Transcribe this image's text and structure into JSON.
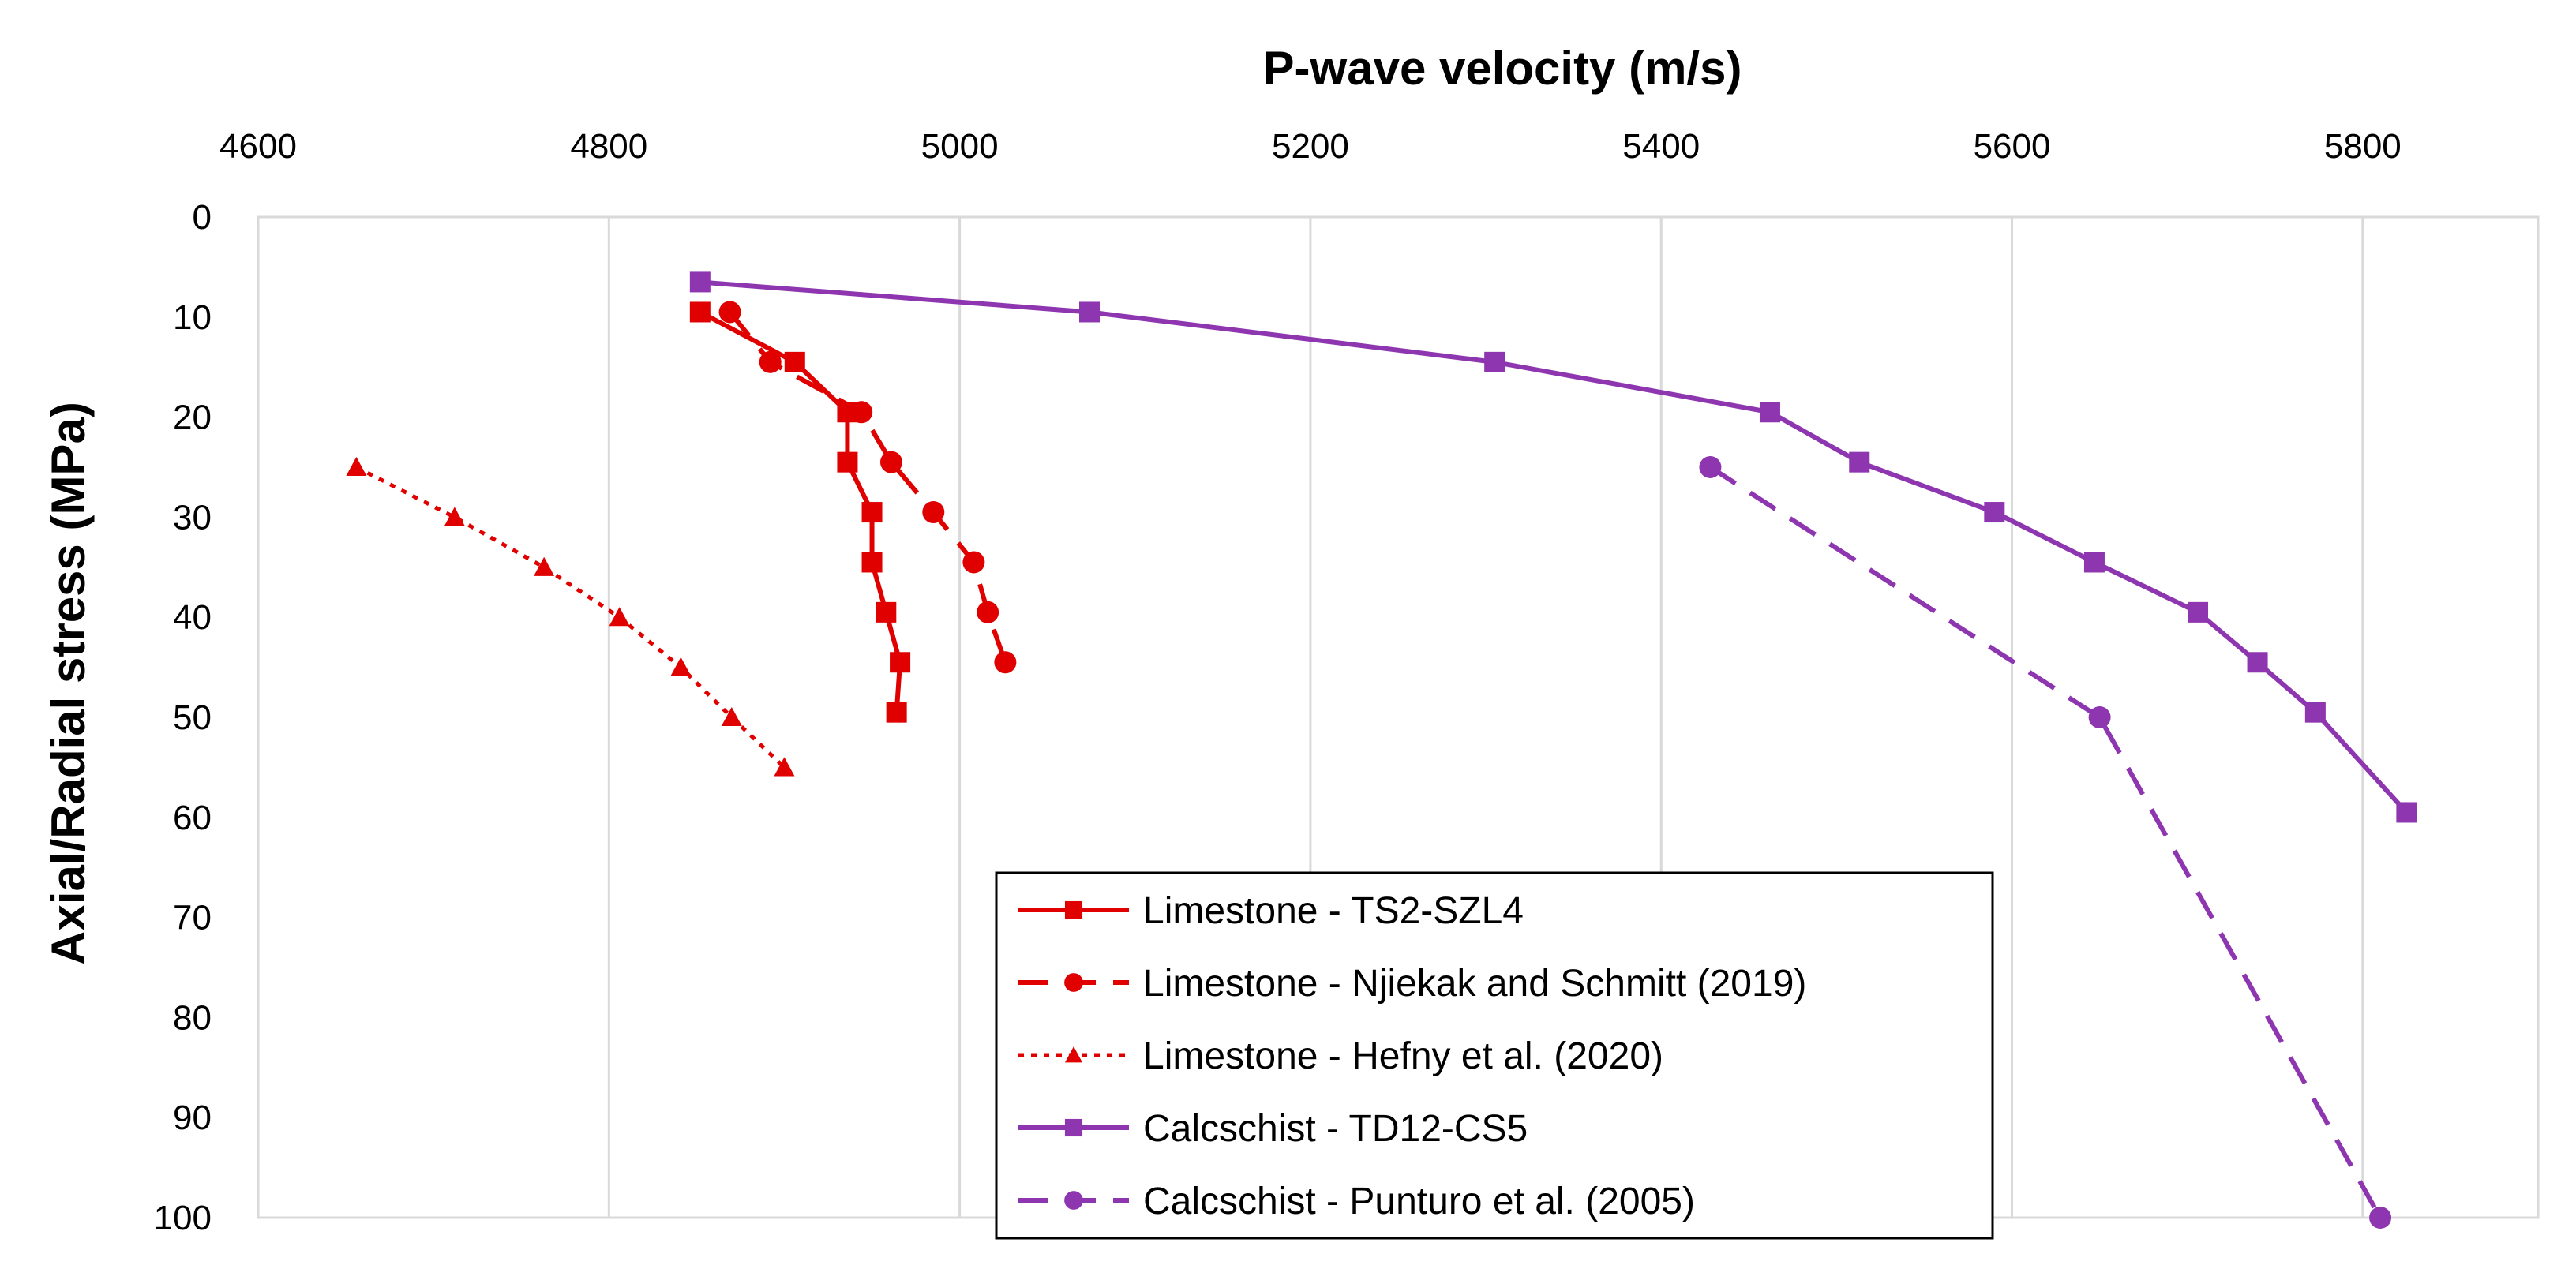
{
  "chart_data": {
    "type": "line",
    "title": "",
    "xlabel": "P-wave velocity (m/s)",
    "ylabel": "Axial/Radial stress (MPa)",
    "x_axis_position": "top",
    "y_axis_inverted": true,
    "xlim": [
      4600,
      5900
    ],
    "ylim": [
      0,
      100
    ],
    "xticks": [
      "4600",
      "4800",
      "5000",
      "5200",
      "5400",
      "5600",
      "5800"
    ],
    "yticks": [
      "0",
      "10",
      "20",
      "30",
      "40",
      "50",
      "60",
      "70",
      "80",
      "90",
      "100"
    ],
    "grid": "vertical",
    "legend_position": "bottom-center",
    "series": [
      {
        "name": "Limestone - TS2-SZL4",
        "color": "#e00000",
        "line_style": "solid",
        "marker": "square",
        "x": [
          4852,
          4906,
          4936,
          4936,
          4950,
          4950,
          4958,
          4966,
          4964
        ],
        "y": [
          9.5,
          14.5,
          19.5,
          24.5,
          29.5,
          34.5,
          39.5,
          44.5,
          49.5
        ]
      },
      {
        "name": "Limestone - Njiekak and Schmitt (2019)",
        "color": "#e00000",
        "line_style": "dashed",
        "marker": "circle",
        "x": [
          4869,
          4892,
          4944,
          4961,
          4985,
          5008,
          5016,
          5026
        ],
        "y": [
          9.5,
          14.5,
          19.5,
          24.5,
          29.5,
          34.5,
          39.5,
          44.5
        ]
      },
      {
        "name": "Limestone - Hefny et al. (2020)",
        "color": "#e00000",
        "line_style": "dotted",
        "marker": "triangle",
        "x": [
          4656,
          4712,
          4763,
          4806,
          4841,
          4870,
          4900
        ],
        "y": [
          25,
          30,
          35,
          40,
          45,
          50,
          55
        ]
      },
      {
        "name": "Calcschist - TD12-CS5",
        "color": "#8e35b0",
        "line_style": "solid",
        "marker": "square",
        "x": [
          4852,
          5074,
          5305,
          5462,
          5513,
          5590,
          5647,
          5706,
          5740,
          5773,
          5825
        ],
        "y": [
          6.5,
          9.5,
          14.5,
          19.5,
          24.5,
          29.5,
          34.5,
          39.5,
          44.5,
          49.5,
          59.5
        ]
      },
      {
        "name": "Calcschist - Punturo et al. (2005)",
        "color": "#8e35b0",
        "line_style": "dashed",
        "marker": "circle",
        "x": [
          5428,
          5650,
          5810
        ],
        "y": [
          25,
          50,
          100
        ]
      }
    ]
  }
}
